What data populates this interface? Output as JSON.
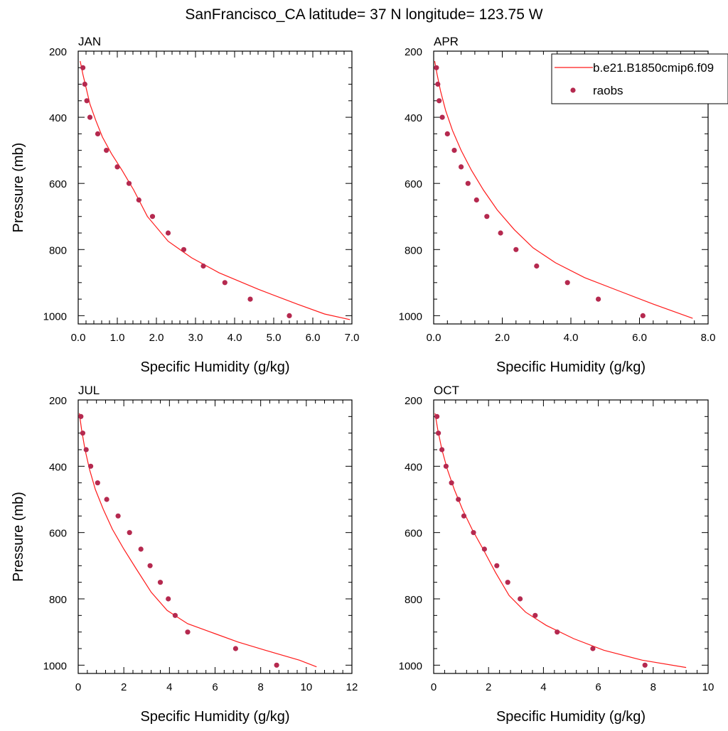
{
  "page": {
    "title": "SanFrancisco_CA  latitude= 37 N longitude= 123.75 W"
  },
  "legend": {
    "model_label": "b.e21.B1850cmip6.f09",
    "obs_label": "raobs"
  },
  "colors": {
    "model_line": "#ff1a1a",
    "obs_marker": "#b5294f",
    "axis": "#000000"
  },
  "chart_data": [
    {
      "type": "line",
      "panel": "JAN",
      "xlabel": "Specific Humidity (g/kg)",
      "ylabel": "Pressure (mb)",
      "xlim": [
        0,
        7
      ],
      "ylim": [
        200,
        1025
      ],
      "y_inverted": true,
      "xticks": [
        0,
        1,
        2,
        3,
        4,
        5,
        6,
        7
      ],
      "xtick_labels": [
        "0.0",
        "1.0",
        "2.0",
        "3.0",
        "4.0",
        "5.0",
        "6.0",
        "7.0"
      ],
      "yticks": [
        200,
        400,
        600,
        800,
        1000
      ],
      "ytick_labels": [
        "200",
        "400",
        "600",
        "800",
        "1000"
      ],
      "series": [
        {
          "name": "b.e21.B1850cmip6.f09",
          "kind": "line",
          "x": [
            0.05,
            0.12,
            0.2,
            0.3,
            0.45,
            0.62,
            0.85,
            1.12,
            1.42,
            1.77,
            2.3,
            2.9,
            3.6,
            4.6,
            5.6,
            6.3,
            6.95
          ],
          "y": [
            230,
            270,
            310,
            360,
            410,
            460,
            510,
            560,
            620,
            700,
            775,
            825,
            870,
            920,
            965,
            995,
            1012
          ]
        },
        {
          "name": "raobs",
          "kind": "scatter",
          "x": [
            0.12,
            0.17,
            0.22,
            0.3,
            0.5,
            0.72,
            1.0,
            1.3,
            1.55,
            1.9,
            2.3,
            2.7,
            3.2,
            3.75,
            4.4,
            5.4
          ],
          "y": [
            250,
            300,
            350,
            400,
            450,
            500,
            550,
            600,
            650,
            700,
            750,
            800,
            850,
            900,
            950,
            1000
          ]
        }
      ]
    },
    {
      "type": "line",
      "panel": "APR",
      "xlabel": "Specific Humidity (g/kg)",
      "ylabel": "",
      "xlim": [
        0,
        8
      ],
      "ylim": [
        200,
        1025
      ],
      "y_inverted": true,
      "xticks": [
        0,
        2,
        4,
        6,
        8
      ],
      "xtick_labels": [
        "0.0",
        "2.0",
        "4.0",
        "6.0",
        "8.0"
      ],
      "yticks": [
        200,
        400,
        600,
        800,
        1000
      ],
      "ytick_labels": [
        "200",
        "400",
        "600",
        "800",
        "1000"
      ],
      "series": [
        {
          "name": "b.e21.B1850cmip6.f09",
          "kind": "line",
          "x": [
            0.03,
            0.1,
            0.2,
            0.35,
            0.55,
            0.8,
            1.1,
            1.45,
            1.85,
            2.35,
            2.9,
            3.55,
            4.4,
            5.4,
            6.4,
            7.55
          ],
          "y": [
            230,
            270,
            320,
            380,
            440,
            500,
            560,
            620,
            680,
            740,
            795,
            840,
            885,
            925,
            965,
            1008
          ]
        },
        {
          "name": "raobs",
          "kind": "scatter",
          "x": [
            0.08,
            0.12,
            0.16,
            0.25,
            0.4,
            0.6,
            0.8,
            1.0,
            1.25,
            1.55,
            1.95,
            2.4,
            3.0,
            3.9,
            4.8,
            6.1
          ],
          "y": [
            250,
            300,
            350,
            400,
            450,
            500,
            550,
            600,
            650,
            700,
            750,
            800,
            850,
            900,
            950,
            1000
          ]
        }
      ]
    },
    {
      "type": "line",
      "panel": "JUL",
      "xlabel": "Specific Humidity (g/kg)",
      "ylabel": "Pressure (mb)",
      "xlim": [
        0,
        12
      ],
      "ylim": [
        200,
        1025
      ],
      "y_inverted": true,
      "xticks": [
        0,
        2,
        4,
        6,
        8,
        10,
        12
      ],
      "xtick_labels": [
        "0",
        "2",
        "4",
        "6",
        "8",
        "10",
        "12"
      ],
      "yticks": [
        200,
        400,
        600,
        800,
        1000
      ],
      "ytick_labels": [
        "200",
        "400",
        "600",
        "800",
        "1000"
      ],
      "series": [
        {
          "name": "b.e21.B1850cmip6.f09",
          "kind": "line",
          "x": [
            0.05,
            0.15,
            0.3,
            0.5,
            0.75,
            1.1,
            1.5,
            2.0,
            2.55,
            3.2,
            3.9,
            4.8,
            6.0,
            7.0,
            8.2,
            9.7,
            10.45
          ],
          "y": [
            240,
            290,
            350,
            410,
            470,
            530,
            590,
            650,
            710,
            780,
            835,
            875,
            905,
            930,
            955,
            985,
            1005
          ]
        },
        {
          "name": "raobs",
          "kind": "scatter",
          "x": [
            0.12,
            0.2,
            0.35,
            0.55,
            0.85,
            1.25,
            1.75,
            2.25,
            2.75,
            3.15,
            3.6,
            3.95,
            4.25,
            4.8,
            6.9,
            8.7
          ],
          "y": [
            250,
            300,
            350,
            400,
            450,
            500,
            550,
            600,
            650,
            700,
            750,
            800,
            850,
            900,
            950,
            1000
          ]
        }
      ]
    },
    {
      "type": "line",
      "panel": "OCT",
      "xlabel": "Specific Humidity (g/kg)",
      "ylabel": "",
      "xlim": [
        0,
        10
      ],
      "ylim": [
        200,
        1025
      ],
      "y_inverted": true,
      "xticks": [
        0,
        2,
        4,
        6,
        8,
        10
      ],
      "xtick_labels": [
        "0",
        "2",
        "4",
        "6",
        "8",
        "10"
      ],
      "yticks": [
        200,
        400,
        600,
        800,
        1000
      ],
      "ytick_labels": [
        "200",
        "400",
        "600",
        "800",
        "1000"
      ],
      "series": [
        {
          "name": "b.e21.B1850cmip6.f09",
          "kind": "line",
          "x": [
            0.05,
            0.15,
            0.3,
            0.5,
            0.75,
            1.05,
            1.4,
            1.8,
            2.25,
            2.75,
            3.35,
            4.1,
            5.1,
            6.2,
            7.6,
            9.2
          ],
          "y": [
            240,
            290,
            350,
            410,
            470,
            530,
            590,
            650,
            720,
            790,
            840,
            880,
            920,
            955,
            985,
            1007
          ]
        },
        {
          "name": "raobs",
          "kind": "scatter",
          "x": [
            0.12,
            0.17,
            0.3,
            0.45,
            0.65,
            0.9,
            1.1,
            1.45,
            1.85,
            2.3,
            2.7,
            3.15,
            3.7,
            4.5,
            5.8,
            7.7
          ],
          "y": [
            250,
            300,
            350,
            400,
            450,
            500,
            550,
            600,
            650,
            700,
            750,
            800,
            850,
            900,
            950,
            1000
          ]
        }
      ]
    }
  ]
}
